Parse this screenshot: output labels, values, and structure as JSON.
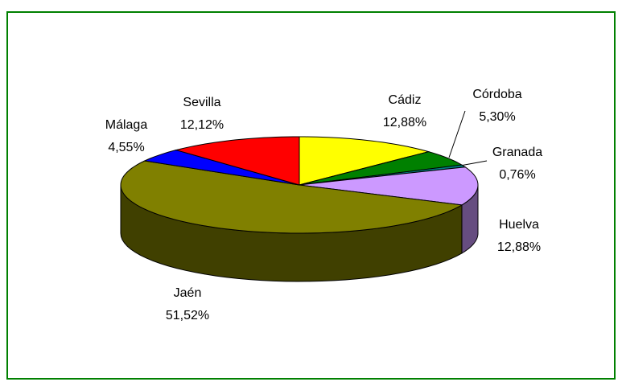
{
  "chart_data": {
    "type": "pie",
    "categories": [
      "Cádiz",
      "Córdoba",
      "Granada",
      "Huelva",
      "Jaén",
      "Málaga",
      "Sevilla"
    ],
    "values": [
      12.88,
      5.3,
      0.76,
      12.88,
      51.52,
      4.55,
      12.12
    ],
    "value_labels": [
      "12,88%",
      "5,30%",
      "0,76%",
      "12,88%",
      "51,52%",
      "4,55%",
      "12,12%"
    ],
    "colors": [
      "#ffff00",
      "#008000",
      "#008080",
      "#cc99ff",
      "#808000",
      "#0000ff",
      "#ff0000"
    ]
  }
}
